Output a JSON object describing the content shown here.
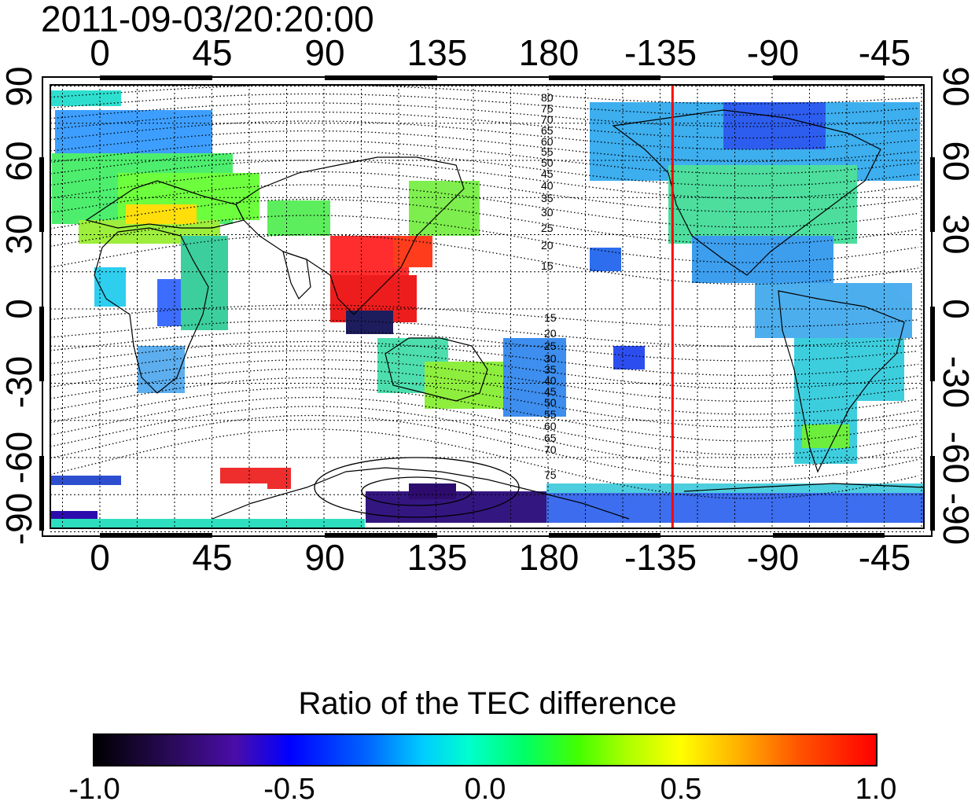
{
  "timestamp": "2011-09-03/20:20:00",
  "longitude_labels": [
    "0",
    "45",
    "90",
    "135",
    "180",
    "-135",
    "-90",
    "-45"
  ],
  "latitude_labels": [
    "90",
    "60",
    "30",
    "0",
    "-30",
    "-60",
    "-90"
  ],
  "north_contour_labels": [
    "80",
    "75",
    "70",
    "65",
    "60",
    "55",
    "50",
    "45",
    "40",
    "35",
    "30",
    "25",
    "20",
    "15"
  ],
  "south_contour_labels": [
    "15",
    "20",
    "25",
    "30",
    "35",
    "40",
    "45",
    "50",
    "55",
    "60",
    "65",
    "70",
    "75"
  ],
  "marker_line": {
    "longitude": -130,
    "color": "#ff0000"
  },
  "colorbar": {
    "title": "Ratio of the TEC difference",
    "tick_labels": [
      "-1.0",
      "-0.5",
      "0.0",
      "0.5",
      "1.0"
    ],
    "range": [
      -1.0,
      1.0
    ]
  },
  "colors": {
    "grid": "#000000",
    "contour": "#000000",
    "coast": "#000000"
  }
}
